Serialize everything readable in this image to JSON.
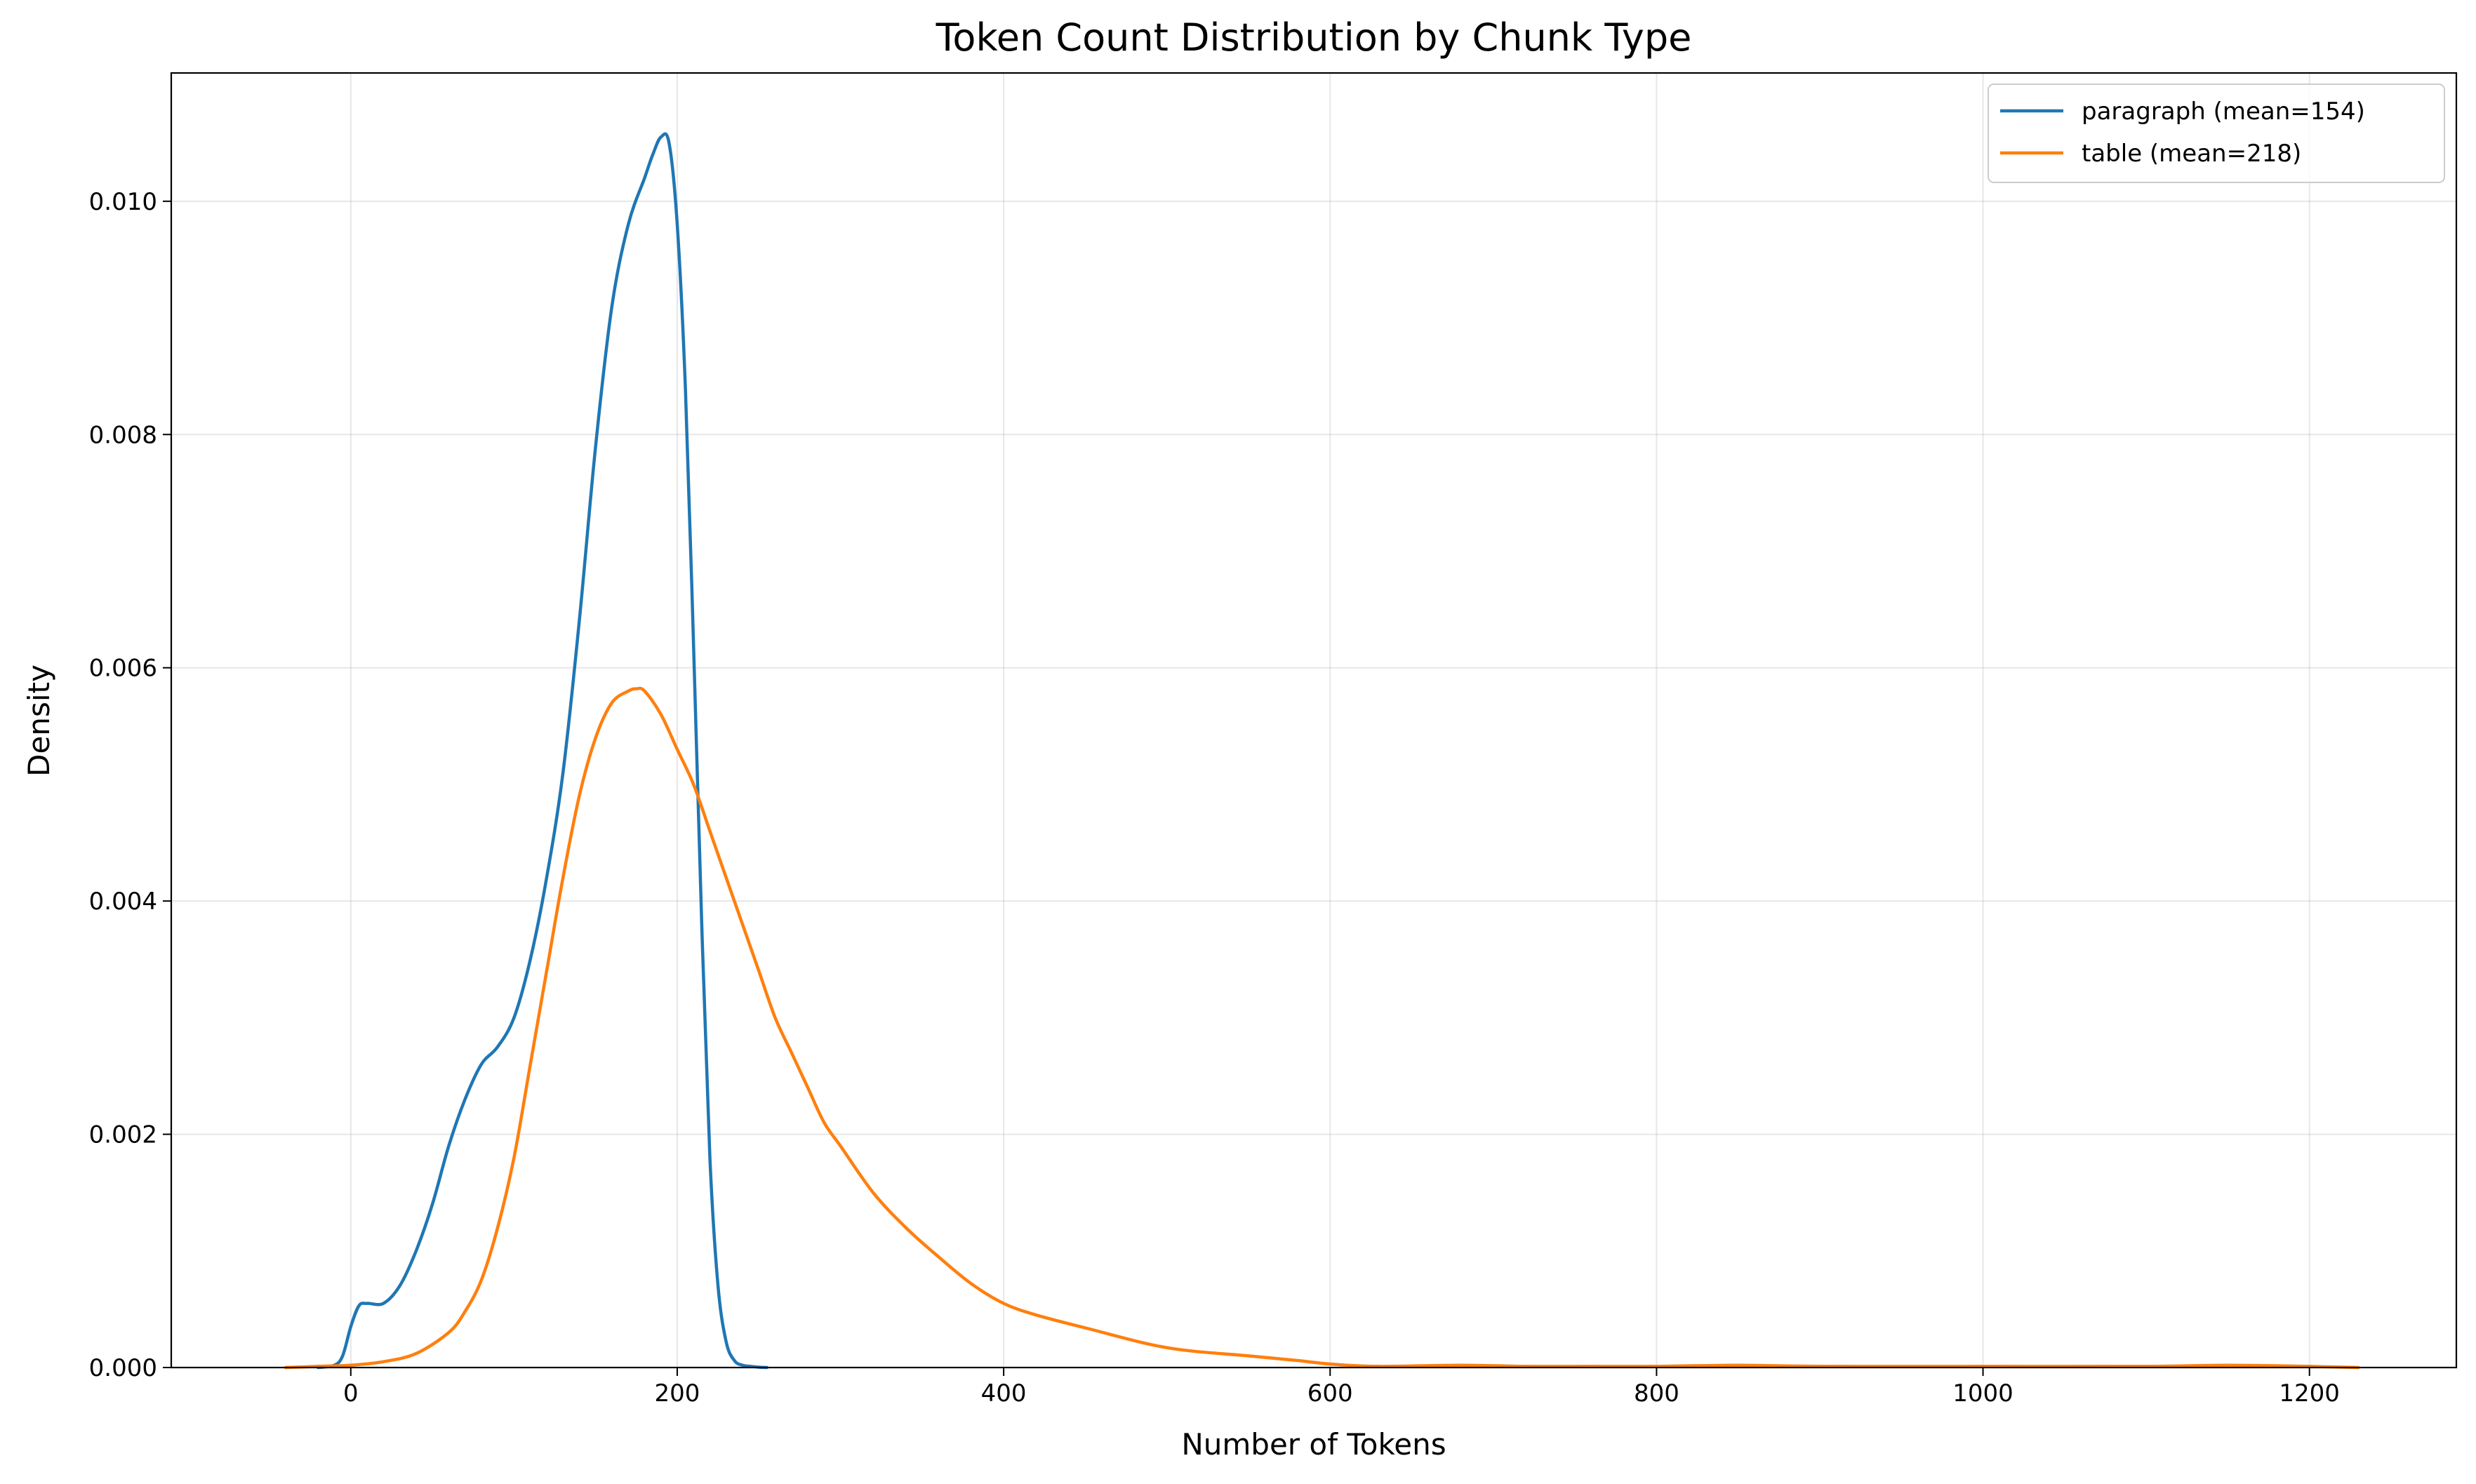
{
  "chart_data": {
    "type": "line",
    "title": "Token Count Distribution by Chunk Type",
    "xlabel": "Number of Tokens",
    "ylabel": "Density",
    "xlim": [
      -110,
      1290
    ],
    "ylim": [
      0,
      0.0111
    ],
    "x_ticks": [
      0,
      200,
      400,
      600,
      800,
      1000,
      1200
    ],
    "x_tick_labels": [
      "0",
      "200",
      "400",
      "600",
      "800",
      "1000",
      "1200"
    ],
    "y_ticks": [
      0,
      0.002,
      0.004,
      0.006,
      0.008,
      0.01
    ],
    "y_tick_labels": [
      "0.000",
      "0.002",
      "0.004",
      "0.006",
      "0.008",
      "0.010"
    ],
    "grid": true,
    "legend_position": "top-right",
    "series": [
      {
        "name": "paragraph (mean=154)",
        "color": "#1f77b4",
        "x": [
          -20,
          -10,
          -5,
          0,
          5,
          10,
          20,
          30,
          40,
          50,
          60,
          70,
          80,
          90,
          100,
          110,
          120,
          130,
          140,
          150,
          160,
          170,
          180,
          185,
          190,
          195,
          200,
          205,
          210,
          215,
          220,
          225,
          230,
          235,
          240,
          245,
          250,
          255
        ],
        "y": [
          0,
          2e-05,
          0.0001,
          0.00035,
          0.00053,
          0.00055,
          0.00055,
          0.0007,
          0.001,
          0.0014,
          0.0019,
          0.0023,
          0.0026,
          0.00275,
          0.003,
          0.0035,
          0.0042,
          0.0051,
          0.0064,
          0.0079,
          0.0091,
          0.0098,
          0.0102,
          0.0104,
          0.01055,
          0.0105,
          0.0098,
          0.0084,
          0.0062,
          0.0038,
          0.0018,
          0.0007,
          0.00022,
          6e-05,
          2e-05,
          1e-05,
          3e-06,
          0
        ]
      },
      {
        "name": "table (mean=218)",
        "color": "#ff7f0e",
        "x": [
          -40,
          -20,
          0,
          20,
          40,
          60,
          70,
          80,
          90,
          100,
          110,
          120,
          130,
          140,
          150,
          160,
          170,
          175,
          180,
          190,
          200,
          210,
          220,
          230,
          240,
          250,
          260,
          270,
          280,
          290,
          300,
          320,
          340,
          360,
          380,
          400,
          420,
          450,
          500,
          550,
          580,
          600,
          630,
          680,
          720,
          760,
          800,
          850,
          900,
          1000,
          1100,
          1150,
          1200,
          1230
        ],
        "y": [
          0,
          1e-05,
          2e-05,
          5e-05,
          0.00012,
          0.0003,
          0.00048,
          0.00075,
          0.0012,
          0.0018,
          0.0026,
          0.0034,
          0.0042,
          0.0049,
          0.0054,
          0.0057,
          0.0058,
          0.00582,
          0.0058,
          0.0056,
          0.0053,
          0.005,
          0.0046,
          0.0042,
          0.0038,
          0.0034,
          0.003,
          0.0027,
          0.0024,
          0.0021,
          0.0019,
          0.0015,
          0.0012,
          0.00095,
          0.00072,
          0.00055,
          0.00045,
          0.00034,
          0.00017,
          0.0001,
          6e-05,
          3e-05,
          1e-05,
          2e-05,
          1e-05,
          1e-05,
          1e-05,
          2e-05,
          1e-05,
          1e-05,
          1e-05,
          2e-05,
          1e-05,
          0
        ]
      }
    ]
  }
}
